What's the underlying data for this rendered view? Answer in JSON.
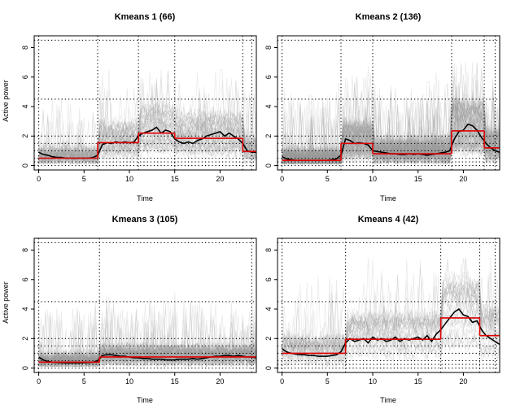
{
  "colors": {
    "traces": "#9a9a9a",
    "mean": "#000000",
    "segments": "#e00000",
    "grid": "#000000"
  },
  "chart_data": [
    {
      "type": "line",
      "title": "Kmeans 1 (66)",
      "xlabel": "Time",
      "ylabel": "Active power",
      "xlim": [
        -0.5,
        24
      ],
      "ylim": [
        -0.3,
        8.8
      ],
      "x_ticks": [
        0,
        5,
        10,
        15,
        20
      ],
      "y_ticks": [
        0,
        2,
        4,
        6,
        8
      ],
      "grid": "dotted",
      "vlines": [
        0,
        6.5,
        11,
        15,
        22.5,
        23.5
      ],
      "hlines": [
        0,
        0.25,
        0.5,
        1,
        1.5,
        2,
        4.5,
        8.5
      ],
      "mean_curve": {
        "x": [
          0,
          0.5,
          1,
          1.5,
          2,
          2.5,
          3,
          3.5,
          4,
          4.5,
          5,
          5.5,
          6,
          6.5,
          7,
          7.5,
          8,
          8.5,
          9,
          9.5,
          10,
          10.5,
          11,
          11.5,
          12,
          12.5,
          13,
          13.5,
          14,
          14.5,
          15,
          15.5,
          16,
          16.5,
          17,
          17.5,
          18,
          18.5,
          19,
          19.5,
          20,
          20.5,
          21,
          21.5,
          22,
          22.5,
          23,
          23.5,
          24
        ],
        "y": [
          0.9,
          0.75,
          0.7,
          0.6,
          0.55,
          0.55,
          0.5,
          0.5,
          0.5,
          0.5,
          0.5,
          0.5,
          0.55,
          0.7,
          1.4,
          1.55,
          1.5,
          1.6,
          1.55,
          1.6,
          1.55,
          1.6,
          2.0,
          2.2,
          2.3,
          2.4,
          2.6,
          2.2,
          2.4,
          2.3,
          1.8,
          1.6,
          1.5,
          1.6,
          1.5,
          1.7,
          1.8,
          2.0,
          2.1,
          2.2,
          2.3,
          2.0,
          2.2,
          2.0,
          1.8,
          1.5,
          1.0,
          0.9,
          0.9
        ]
      },
      "segments": [
        {
          "x0": 0,
          "x1": 6.5,
          "y": 0.5
        },
        {
          "x0": 6.5,
          "x1": 11,
          "y": 1.55
        },
        {
          "x0": 11,
          "x1": 15,
          "y": 2.2
        },
        {
          "x0": 15,
          "x1": 22.5,
          "y": 1.85
        },
        {
          "x0": 22.5,
          "x1": 24,
          "y": 0.95
        }
      ],
      "traces": {
        "count": 66,
        "base": [
          0.3,
          1.4,
          2.0,
          1.7,
          0.9
        ],
        "spread": 0.9,
        "max": 6.5
      }
    },
    {
      "type": "line",
      "title": "Kmeans 2 (136)",
      "xlabel": "Time",
      "ylabel": "",
      "xlim": [
        -0.5,
        24
      ],
      "ylim": [
        -0.3,
        8.8
      ],
      "x_ticks": [
        0,
        5,
        10,
        15,
        20
      ],
      "y_ticks": [
        0,
        2,
        4,
        6,
        8
      ],
      "grid": "dotted",
      "vlines": [
        0,
        6.5,
        10,
        18.7,
        22.3,
        23.5
      ],
      "hlines": [
        0,
        0.25,
        0.5,
        1,
        1.5,
        2,
        4.5,
        8.5
      ],
      "mean_curve": {
        "x": [
          0,
          0.5,
          1,
          1.5,
          2,
          2.5,
          3,
          3.5,
          4,
          4.5,
          5,
          5.5,
          6,
          6.5,
          7,
          7.5,
          8,
          8.5,
          9,
          9.5,
          10,
          10.5,
          11,
          11.5,
          12,
          12.5,
          13,
          13.5,
          14,
          14.5,
          15,
          15.5,
          16,
          16.5,
          17,
          17.5,
          18,
          18.5,
          19,
          19.5,
          20,
          20.5,
          21,
          21.5,
          22,
          22.5,
          23,
          23.5,
          24
        ],
        "y": [
          0.6,
          0.45,
          0.4,
          0.35,
          0.35,
          0.35,
          0.35,
          0.35,
          0.35,
          0.35,
          0.35,
          0.4,
          0.45,
          0.7,
          1.8,
          1.7,
          1.5,
          1.55,
          1.5,
          1.4,
          1.0,
          0.95,
          0.9,
          0.85,
          0.8,
          0.8,
          0.75,
          0.75,
          0.8,
          0.75,
          0.8,
          0.75,
          0.7,
          0.75,
          0.8,
          0.85,
          0.9,
          1.0,
          1.8,
          2.3,
          2.4,
          2.8,
          2.7,
          2.4,
          1.9,
          1.5,
          1.2,
          1.0,
          0.9
        ]
      },
      "segments": [
        {
          "x0": 0,
          "x1": 6.5,
          "y": 0.35
        },
        {
          "x0": 6.5,
          "x1": 10,
          "y": 1.5
        },
        {
          "x0": 10,
          "x1": 18.7,
          "y": 0.8
        },
        {
          "x0": 18.7,
          "x1": 22.3,
          "y": 2.35
        },
        {
          "x0": 22.3,
          "x1": 24,
          "y": 1.2
        }
      ],
      "traces": {
        "count": 136,
        "base": [
          0.3,
          1.4,
          0.8,
          2.3,
          1.1
        ],
        "spread": 1.0,
        "max": 7.0
      }
    },
    {
      "type": "line",
      "title": "Kmeans 3 (105)",
      "xlabel": "Time",
      "ylabel": "Active power",
      "xlim": [
        -0.5,
        24
      ],
      "ylim": [
        -0.3,
        8.8
      ],
      "x_ticks": [
        0,
        5,
        10,
        15,
        20
      ],
      "y_ticks": [
        0,
        2,
        4,
        6,
        8
      ],
      "grid": "dotted",
      "vlines": [
        0,
        6.7,
        23.5
      ],
      "hlines": [
        0,
        0.25,
        0.5,
        1,
        1.5,
        2,
        4.5,
        8.5
      ],
      "mean_curve": {
        "x": [
          0,
          0.5,
          1,
          1.5,
          2,
          2.5,
          3,
          3.5,
          4,
          4.5,
          5,
          5.5,
          6,
          6.5,
          7,
          7.5,
          8,
          8.5,
          9,
          9.5,
          10,
          10.5,
          11,
          11.5,
          12,
          12.5,
          13,
          13.5,
          14,
          14.5,
          15,
          15.5,
          16,
          16.5,
          17,
          17.5,
          18,
          18.5,
          19,
          19.5,
          20,
          20.5,
          21,
          21.5,
          22,
          22.5,
          23,
          23.5,
          24
        ],
        "y": [
          0.75,
          0.55,
          0.45,
          0.4,
          0.38,
          0.36,
          0.35,
          0.35,
          0.35,
          0.35,
          0.36,
          0.38,
          0.4,
          0.5,
          0.85,
          0.9,
          0.9,
          0.85,
          0.8,
          0.8,
          0.75,
          0.7,
          0.7,
          0.65,
          0.65,
          0.6,
          0.6,
          0.6,
          0.55,
          0.55,
          0.55,
          0.6,
          0.6,
          0.6,
          0.65,
          0.6,
          0.65,
          0.7,
          0.75,
          0.8,
          0.8,
          0.85,
          0.85,
          0.8,
          0.85,
          0.8,
          0.75,
          0.75,
          0.7
        ]
      },
      "segments": [
        {
          "x0": 0,
          "x1": 6.7,
          "y": 0.4
        },
        {
          "x0": 6.7,
          "x1": 24,
          "y": 0.75
        }
      ],
      "traces": {
        "count": 105,
        "base": [
          0.35,
          0.75
        ],
        "spread": 0.7,
        "max": 6.0
      }
    },
    {
      "type": "line",
      "title": "Kmeans 4 (42)",
      "xlabel": "Time",
      "ylabel": "",
      "xlim": [
        -0.5,
        24
      ],
      "ylim": [
        -0.3,
        8.8
      ],
      "x_ticks": [
        0,
        5,
        10,
        15,
        20
      ],
      "y_ticks": [
        0,
        2,
        4,
        6,
        8
      ],
      "grid": "dotted",
      "vlines": [
        0,
        7,
        17.5,
        21.8,
        23.5
      ],
      "hlines": [
        0,
        0.25,
        0.5,
        1,
        1.5,
        2,
        4.5,
        8.5
      ],
      "mean_curve": {
        "x": [
          0,
          0.5,
          1,
          1.5,
          2,
          2.5,
          3,
          3.5,
          4,
          4.5,
          5,
          5.5,
          6,
          6.5,
          7,
          7.5,
          8,
          8.5,
          9,
          9.5,
          10,
          10.5,
          11,
          11.5,
          12,
          12.5,
          13,
          13.5,
          14,
          14.5,
          15,
          15.5,
          16,
          16.5,
          17,
          17.5,
          18,
          18.5,
          19,
          19.5,
          20,
          20.5,
          21,
          21.5,
          22,
          22.5,
          23,
          23.5,
          24
        ],
        "y": [
          1.3,
          1.1,
          1.0,
          0.95,
          0.9,
          0.9,
          0.85,
          0.85,
          0.8,
          0.8,
          0.8,
          0.85,
          0.9,
          1.1,
          1.7,
          2.0,
          1.8,
          1.9,
          2.0,
          1.7,
          2.1,
          1.9,
          2.0,
          1.8,
          1.9,
          2.1,
          1.8,
          2.0,
          1.9,
          2.0,
          2.1,
          1.9,
          2.2,
          1.8,
          2.3,
          2.6,
          3.0,
          3.4,
          3.8,
          4.0,
          3.6,
          3.5,
          3.1,
          3.2,
          2.6,
          2.2,
          2.0,
          1.8,
          1.6
        ]
      },
      "segments": [
        {
          "x0": 0,
          "x1": 7,
          "y": 1.0
        },
        {
          "x0": 7,
          "x1": 17.5,
          "y": 1.95
        },
        {
          "x0": 17.5,
          "x1": 21.8,
          "y": 3.4
        },
        {
          "x0": 21.8,
          "x1": 24,
          "y": 2.2
        }
      ],
      "traces": {
        "count": 42,
        "base": [
          0.9,
          1.9,
          3.3,
          2.1
        ],
        "spread": 1.1,
        "max": 7.5
      }
    }
  ]
}
